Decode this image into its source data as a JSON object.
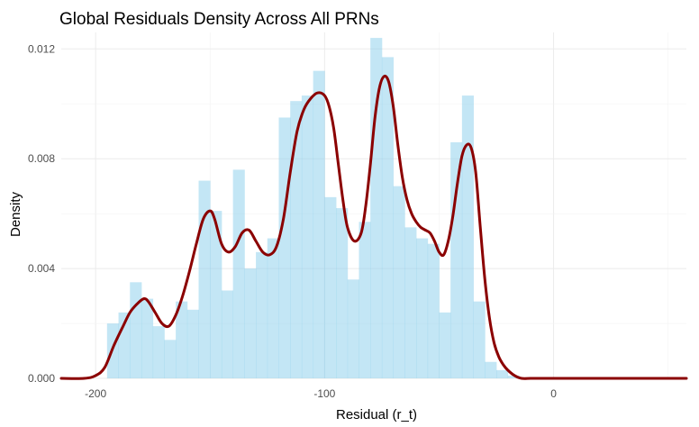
{
  "chart_data": {
    "type": "histogram+density",
    "title": "Global Residuals Density Across All PRNs",
    "xlabel": "Residual (r_t)",
    "ylabel": "Density",
    "xlim": [
      -215,
      58
    ],
    "ylim": [
      0,
      0.0126
    ],
    "x_ticks": [
      -200,
      -100,
      0
    ],
    "x_tick_labels": [
      "-200",
      "-100",
      "0"
    ],
    "y_ticks": [
      0,
      0.004,
      0.008,
      0.012
    ],
    "y_tick_labels": [
      "0.000",
      "0.004",
      "0.008",
      "0.012"
    ],
    "grid": true,
    "legend": "none",
    "colors": {
      "histogram": "#87ceeb",
      "density": "#8b0000",
      "grid": "#ebebeb"
    },
    "histogram": {
      "bin_width": 5,
      "bin_starts": [
        -200,
        -195,
        -190,
        -185,
        -180,
        -175,
        -170,
        -165,
        -160,
        -155,
        -150,
        -145,
        -140,
        -135,
        -130,
        -125,
        -120,
        -115,
        -110,
        -105,
        -100,
        -95,
        -90,
        -85,
        -80,
        -75,
        -70,
        -65,
        -60,
        -55,
        -50,
        -45,
        -40,
        -35,
        -30,
        -25,
        -20
      ],
      "density": [
        0.0,
        0.002,
        0.0024,
        0.0035,
        0.0029,
        0.0019,
        0.0014,
        0.0028,
        0.0025,
        0.0072,
        0.0061,
        0.0032,
        0.0076,
        0.004,
        0.0046,
        0.0051,
        0.0095,
        0.0101,
        0.0103,
        0.0112,
        0.0066,
        0.0062,
        0.0036,
        0.0057,
        0.0124,
        0.0117,
        0.007,
        0.0055,
        0.0051,
        0.0049,
        0.0024,
        0.0086,
        0.0103,
        0.0028,
        0.0006,
        0.0003,
        0.0001
      ]
    },
    "density_curve": {
      "x": [
        -215,
        -205,
        -200,
        -196,
        -192,
        -188,
        -185,
        -182,
        -179,
        -177,
        -174,
        -171,
        -168,
        -165,
        -162,
        -159,
        -156,
        -153,
        -150,
        -148,
        -145,
        -142,
        -139,
        -136,
        -133,
        -130,
        -127,
        -124,
        -121,
        -118,
        -115,
        -112,
        -109,
        -106,
        -103,
        -100,
        -98,
        -96,
        -94,
        -92,
        -90,
        -87,
        -84,
        -82,
        -80,
        -78,
        -76,
        -74,
        -72,
        -70,
        -68,
        -66,
        -64,
        -62,
        -60,
        -58,
        -56,
        -54,
        -52,
        -50,
        -48,
        -46,
        -44,
        -42,
        -40,
        -38,
        -36,
        -34,
        -32,
        -30,
        -28,
        -26,
        -24,
        -22,
        -20,
        -17,
        -14,
        -10,
        -5,
        0,
        20,
        40,
        58
      ],
      "y": [
        0.0,
        0.0,
        0.0001,
        0.0004,
        0.0012,
        0.0019,
        0.0024,
        0.0027,
        0.0029,
        0.0028,
        0.0024,
        0.002,
        0.0019,
        0.0023,
        0.003,
        0.0039,
        0.0049,
        0.0058,
        0.0061,
        0.0058,
        0.0049,
        0.0046,
        0.0048,
        0.0053,
        0.0054,
        0.005,
        0.0046,
        0.0045,
        0.0048,
        0.0058,
        0.0075,
        0.009,
        0.0098,
        0.0102,
        0.0104,
        0.0103,
        0.0099,
        0.0091,
        0.0078,
        0.0065,
        0.0055,
        0.005,
        0.0053,
        0.0063,
        0.0078,
        0.0095,
        0.0106,
        0.011,
        0.0108,
        0.0099,
        0.0085,
        0.0073,
        0.0065,
        0.006,
        0.0057,
        0.0055,
        0.0054,
        0.0053,
        0.005,
        0.0046,
        0.0045,
        0.005,
        0.0059,
        0.0071,
        0.0081,
        0.0085,
        0.0084,
        0.0075,
        0.0055,
        0.0036,
        0.0022,
        0.0013,
        0.0008,
        0.0005,
        0.0003,
        0.0001,
        0.0,
        0.0,
        0.0,
        0.0,
        0.0,
        0.0,
        0.0
      ]
    }
  }
}
